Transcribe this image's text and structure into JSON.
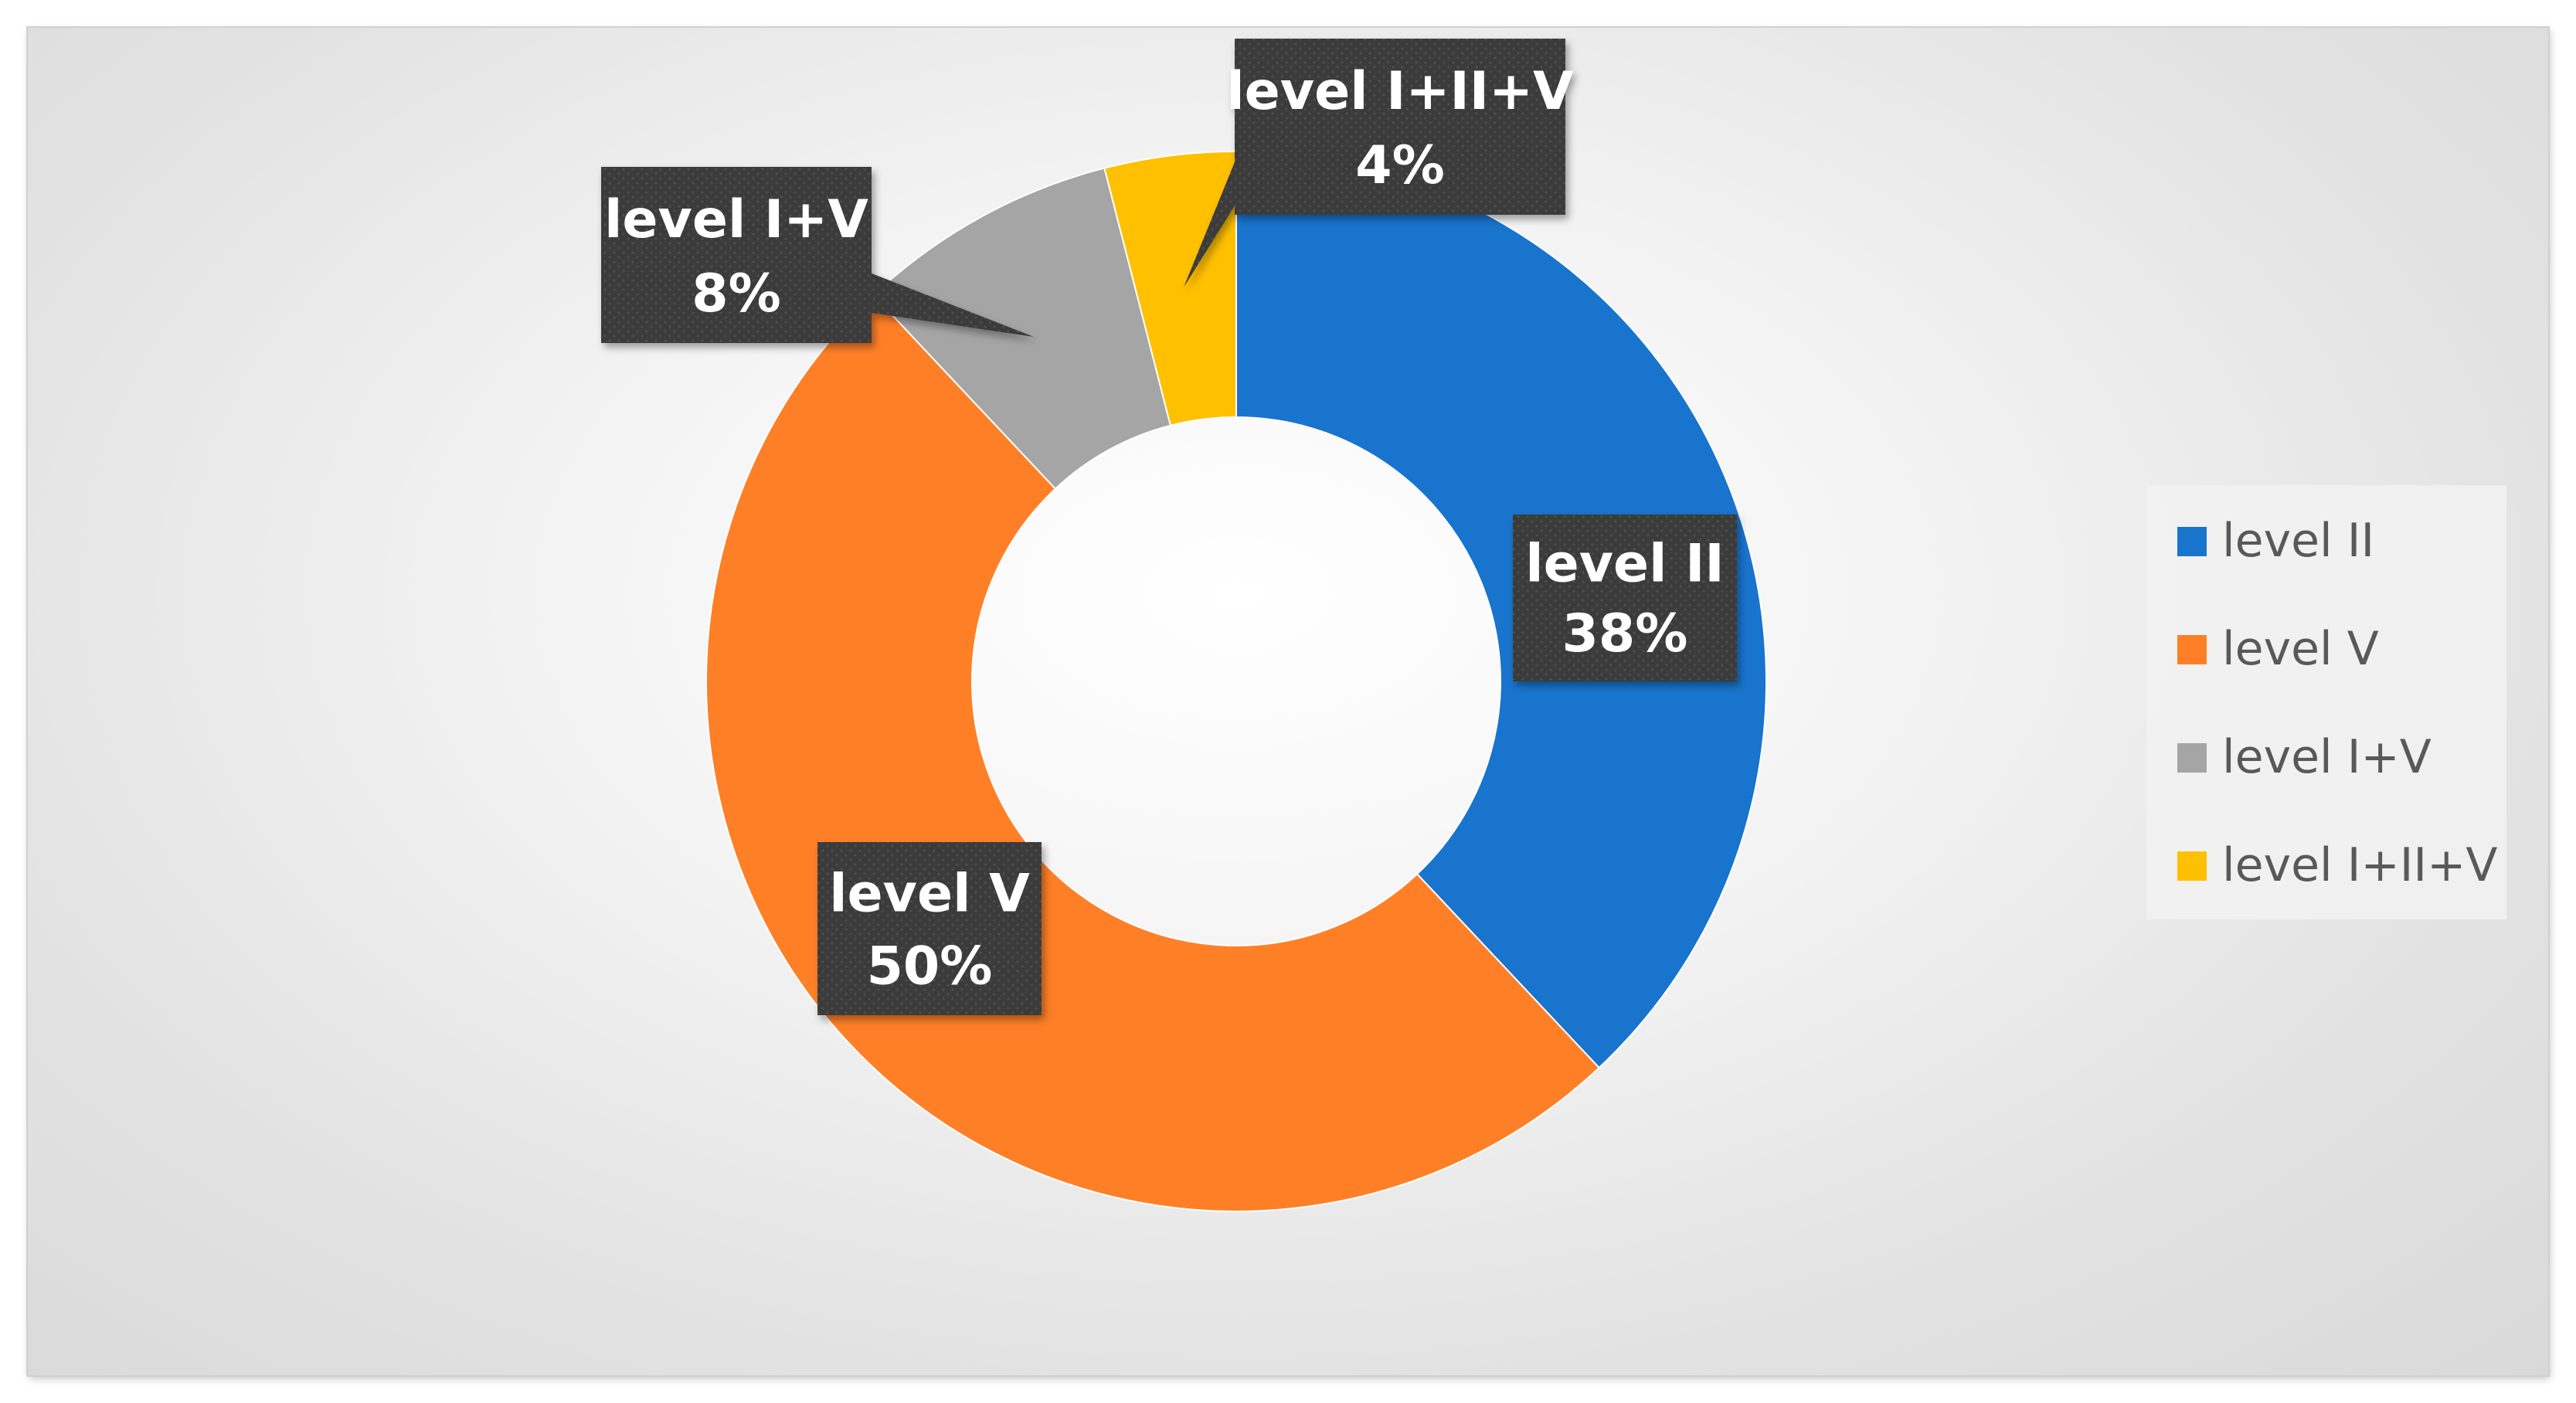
{
  "chart_data": {
    "type": "pie",
    "donut": true,
    "categories": [
      "level II",
      "level V",
      "level I+V",
      "level I+II+V"
    ],
    "values": [
      38,
      50,
      8,
      4
    ],
    "unit": "%",
    "colors": [
      "#1874CD",
      "#FF7F27",
      "#A5A5A5",
      "#FFC000"
    ],
    "data_labels": [
      "38%",
      "50%",
      "8%",
      "4%"
    ],
    "legend_position": "right"
  }
}
